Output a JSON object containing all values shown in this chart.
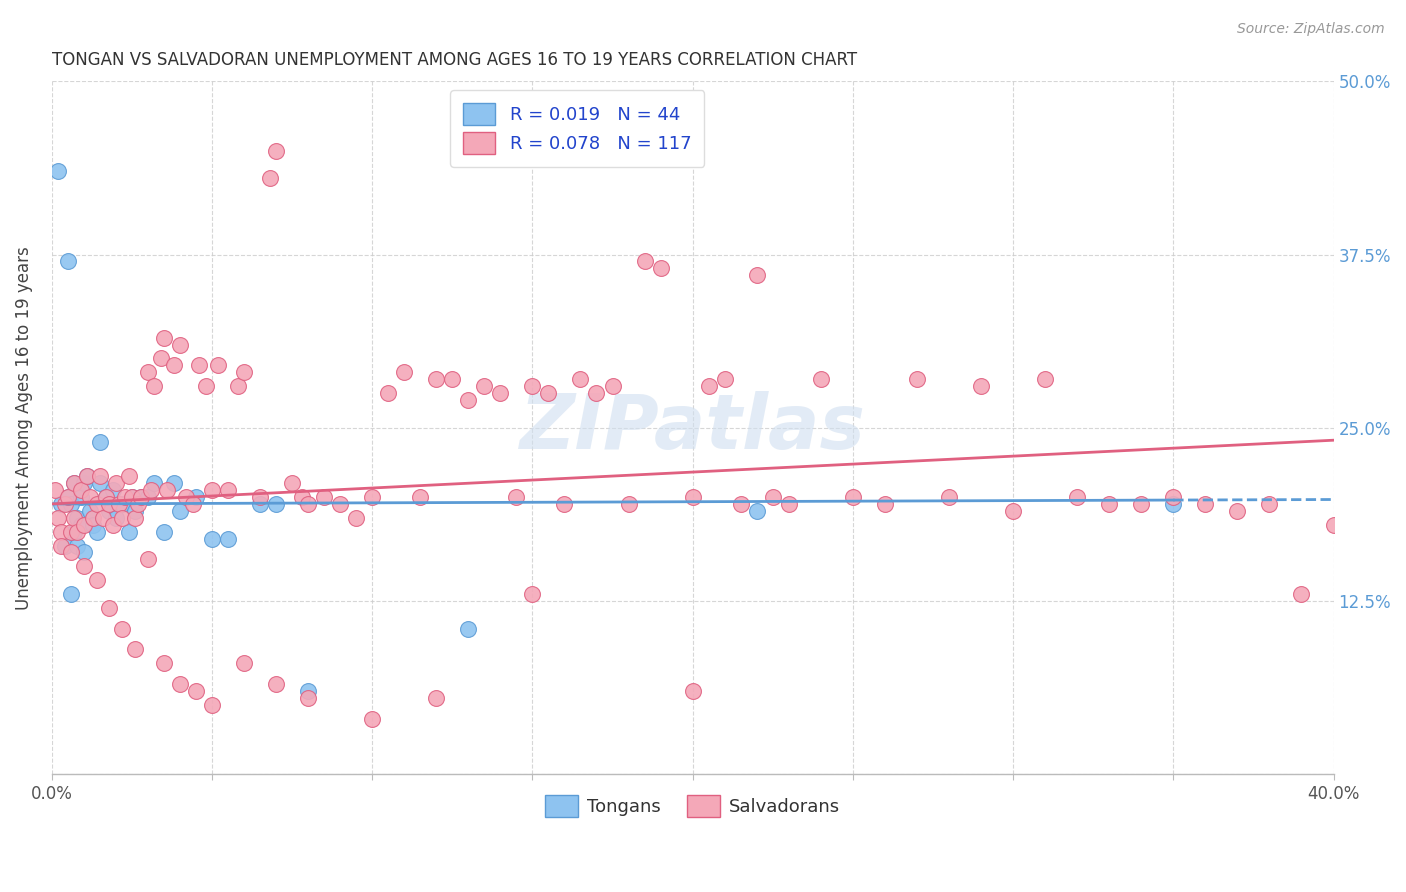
{
  "title": "TONGAN VS SALVADORAN UNEMPLOYMENT AMONG AGES 16 TO 19 YEARS CORRELATION CHART",
  "source": "Source: ZipAtlas.com",
  "ylabel": "Unemployment Among Ages 16 to 19 years",
  "legend_tongans": "Tongans",
  "legend_salvadorans": "Salvadorans",
  "xlim": [
    0.0,
    0.4
  ],
  "ylim": [
    0.0,
    0.5
  ],
  "color_tongans": "#8ec3f0",
  "color_tongans_edge": "#5b9bd5",
  "color_salvadorans": "#f4a8b8",
  "color_salvadorans_edge": "#e06080",
  "color_line_tongans": "#5b9bd5",
  "color_line_salvadorans": "#e06080",
  "color_right_ticks": "#5b9bd5",
  "watermark_color": "#d0dff0",
  "background_color": "#ffffff",
  "tongans_x": [
    0.002,
    0.003,
    0.004,
    0.005,
    0.005,
    0.006,
    0.006,
    0.007,
    0.007,
    0.008,
    0.008,
    0.009,
    0.009,
    0.01,
    0.01,
    0.011,
    0.012,
    0.013,
    0.014,
    0.015,
    0.015,
    0.017,
    0.018,
    0.019,
    0.02,
    0.022,
    0.024,
    0.025,
    0.026,
    0.028,
    0.03,
    0.032,
    0.035,
    0.038,
    0.04,
    0.045,
    0.05,
    0.055,
    0.065,
    0.07,
    0.08,
    0.13,
    0.22,
    0.35
  ],
  "tongans_y": [
    0.435,
    0.195,
    0.165,
    0.37,
    0.2,
    0.13,
    0.195,
    0.175,
    0.21,
    0.185,
    0.165,
    0.2,
    0.18,
    0.21,
    0.16,
    0.215,
    0.19,
    0.18,
    0.175,
    0.21,
    0.24,
    0.2,
    0.19,
    0.205,
    0.185,
    0.195,
    0.175,
    0.2,
    0.19,
    0.2,
    0.2,
    0.21,
    0.175,
    0.21,
    0.19,
    0.2,
    0.17,
    0.17,
    0.195,
    0.195,
    0.06,
    0.105,
    0.19,
    0.195
  ],
  "salvadorans_x": [
    0.001,
    0.002,
    0.003,
    0.004,
    0.005,
    0.006,
    0.007,
    0.007,
    0.008,
    0.009,
    0.01,
    0.011,
    0.012,
    0.013,
    0.014,
    0.015,
    0.016,
    0.017,
    0.018,
    0.019,
    0.02,
    0.021,
    0.022,
    0.023,
    0.024,
    0.025,
    0.026,
    0.027,
    0.028,
    0.03,
    0.031,
    0.032,
    0.034,
    0.035,
    0.036,
    0.038,
    0.04,
    0.042,
    0.044,
    0.046,
    0.048,
    0.05,
    0.052,
    0.055,
    0.058,
    0.06,
    0.065,
    0.068,
    0.07,
    0.075,
    0.078,
    0.08,
    0.085,
    0.09,
    0.095,
    0.1,
    0.105,
    0.11,
    0.115,
    0.12,
    0.125,
    0.13,
    0.135,
    0.14,
    0.145,
    0.15,
    0.155,
    0.16,
    0.165,
    0.17,
    0.175,
    0.18,
    0.185,
    0.19,
    0.2,
    0.205,
    0.21,
    0.215,
    0.22,
    0.225,
    0.23,
    0.24,
    0.25,
    0.26,
    0.27,
    0.28,
    0.29,
    0.3,
    0.31,
    0.32,
    0.33,
    0.34,
    0.35,
    0.36,
    0.37,
    0.38,
    0.39,
    0.4,
    0.003,
    0.006,
    0.01,
    0.014,
    0.018,
    0.022,
    0.026,
    0.03,
    0.035,
    0.04,
    0.045,
    0.05,
    0.06,
    0.07,
    0.08,
    0.1,
    0.12,
    0.15,
    0.2
  ],
  "salvadorans_y": [
    0.205,
    0.185,
    0.175,
    0.195,
    0.2,
    0.175,
    0.21,
    0.185,
    0.175,
    0.205,
    0.18,
    0.215,
    0.2,
    0.185,
    0.195,
    0.215,
    0.185,
    0.2,
    0.195,
    0.18,
    0.21,
    0.195,
    0.185,
    0.2,
    0.215,
    0.2,
    0.185,
    0.195,
    0.2,
    0.29,
    0.205,
    0.28,
    0.3,
    0.315,
    0.205,
    0.295,
    0.31,
    0.2,
    0.195,
    0.295,
    0.28,
    0.205,
    0.295,
    0.205,
    0.28,
    0.29,
    0.2,
    0.43,
    0.45,
    0.21,
    0.2,
    0.195,
    0.2,
    0.195,
    0.185,
    0.2,
    0.275,
    0.29,
    0.2,
    0.285,
    0.285,
    0.27,
    0.28,
    0.275,
    0.2,
    0.28,
    0.275,
    0.195,
    0.285,
    0.275,
    0.28,
    0.195,
    0.37,
    0.365,
    0.2,
    0.28,
    0.285,
    0.195,
    0.36,
    0.2,
    0.195,
    0.285,
    0.2,
    0.195,
    0.285,
    0.2,
    0.28,
    0.19,
    0.285,
    0.2,
    0.195,
    0.195,
    0.2,
    0.195,
    0.19,
    0.195,
    0.13,
    0.18,
    0.165,
    0.16,
    0.15,
    0.14,
    0.12,
    0.105,
    0.09,
    0.155,
    0.08,
    0.065,
    0.06,
    0.05,
    0.08,
    0.065,
    0.055,
    0.04,
    0.055,
    0.13,
    0.06
  ]
}
